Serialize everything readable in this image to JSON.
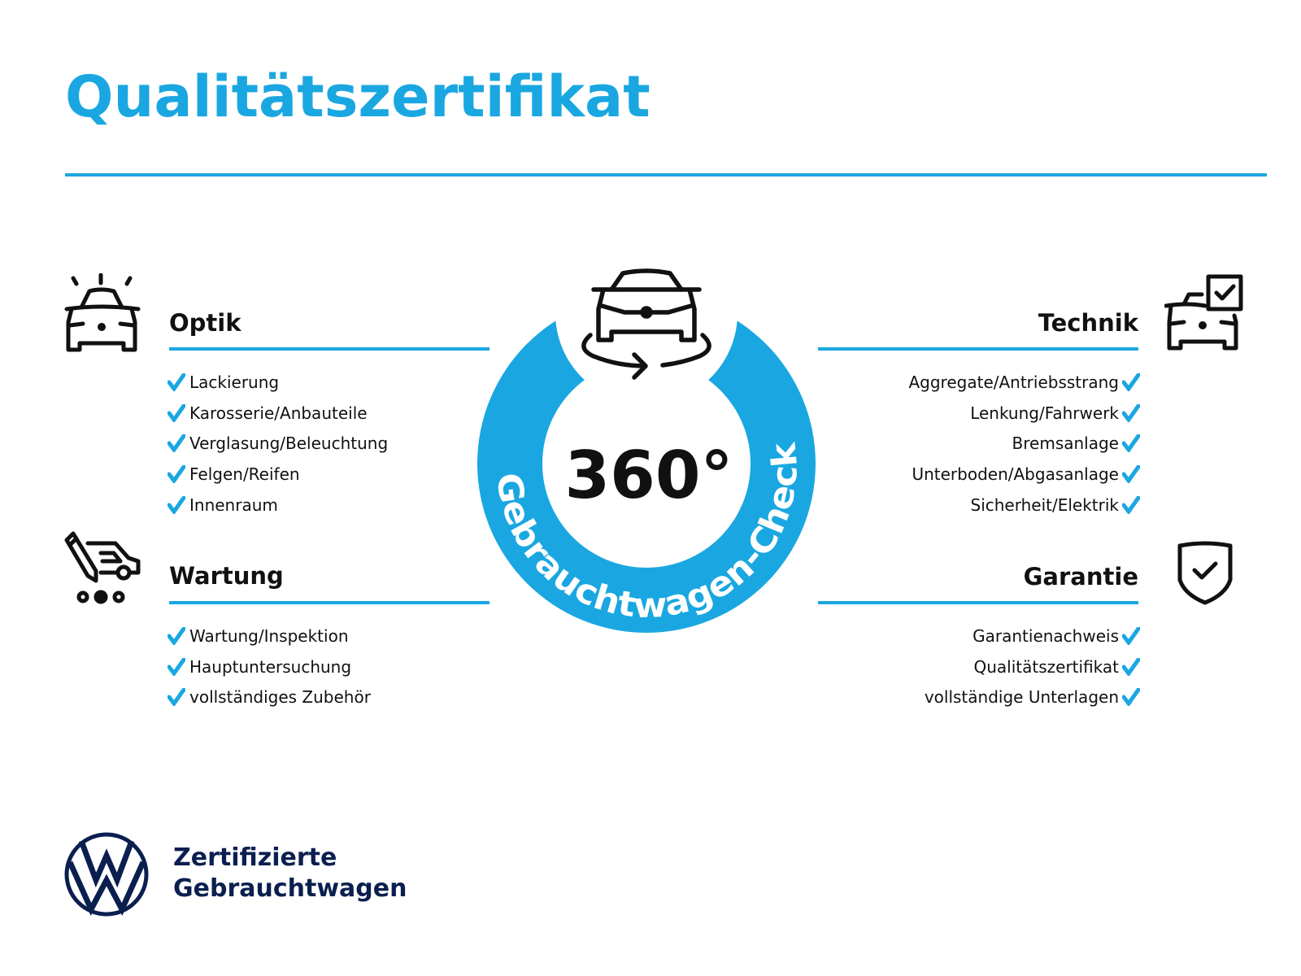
{
  "title": "Qualitätszertifikat",
  "colors": {
    "accent": "#1aa7e1",
    "brand_dark": "#0b1f4f",
    "text": "#111111"
  },
  "center": {
    "degree": "360°",
    "ring_text": "Gebrauchtwagen-Check",
    "icon": "car-rotate-icon"
  },
  "sections": {
    "optik": {
      "heading": "Optik",
      "icon": "car-lights-icon",
      "items": [
        "Lackierung",
        "Karosserie/Anbauteile",
        "Verglasung/Beleuchtung",
        "Felgen/Reifen",
        "Innenraum"
      ]
    },
    "wartung": {
      "heading": "Wartung",
      "icon": "service-van-pencil-icon",
      "items": [
        "Wartung/Inspektion",
        "Hauptuntersuchung",
        "vollständiges Zubehör"
      ]
    },
    "technik": {
      "heading": "Technik",
      "icon": "car-checkbox-icon",
      "items": [
        "Aggregate/Antriebsstrang",
        "Lenkung/Fahrwerk",
        "Bremsanlage",
        "Unterboden/Abgasanlage",
        "Sicherheit/Elektrik"
      ]
    },
    "garantie": {
      "heading": "Garantie",
      "icon": "shield-check-icon",
      "items": [
        "Garantienachweis",
        "Qualitätszertifikat",
        "vollständige Unterlagen"
      ]
    }
  },
  "footer": {
    "logo": "VW",
    "line1": "Zertifizierte",
    "line2": "Gebrauchtwagen"
  }
}
